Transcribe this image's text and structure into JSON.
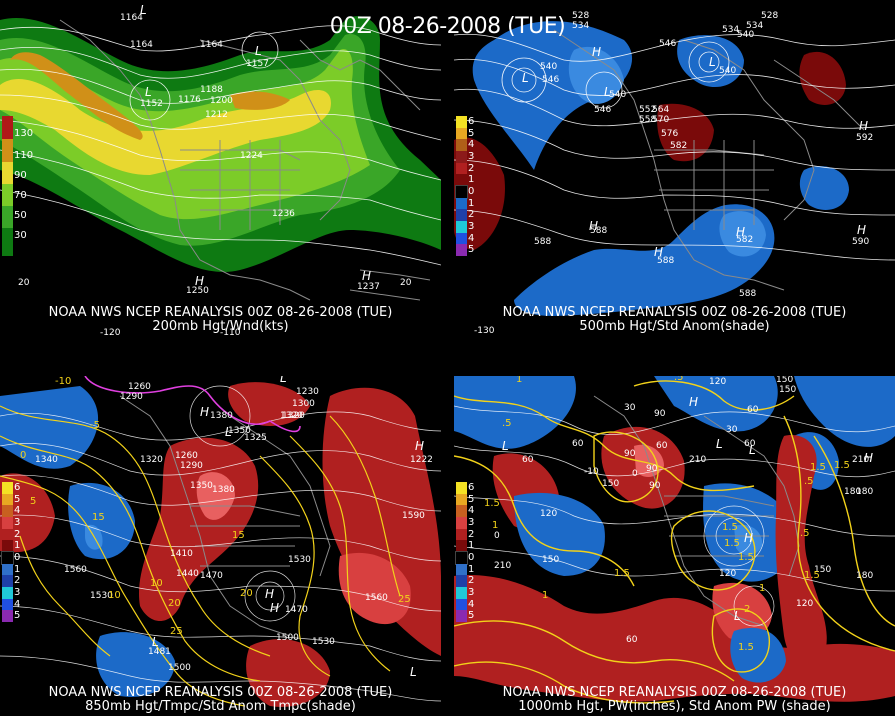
{
  "title": "00Z 08-26-2008 (TUE)",
  "panels": [
    {
      "caption1": "NOAA NWS NCEP REANALYSIS 00Z 08-26-2008 (TUE)",
      "caption2": "200mb Hgt/Wnd(kts)",
      "colorbar": [
        "130",
        "110",
        "90",
        "70",
        "50",
        "30"
      ],
      "colors": [
        "#b01818",
        "#d09018",
        "#e8d830",
        "#7ccc28",
        "#3aa628",
        "#0e7a12"
      ],
      "labels": [
        "1164",
        "1164",
        "1164",
        "1188",
        "1176",
        "1200",
        "1212",
        "1224",
        "1236",
        "1250",
        "1237",
        "1157",
        "1152"
      ],
      "ticks": [
        "20",
        "20",
        "-120",
        "-110"
      ]
    },
    {
      "caption1": "NOAA NWS NCEP REANALYSIS 00Z 08-26-2008 (TUE)",
      "caption2": "500mb Hgt/Std Anom(shade)",
      "colorbar": [
        "6",
        "5",
        "4",
        "3",
        "2",
        "1",
        "0",
        "1",
        "2",
        "3",
        "4",
        "5"
      ],
      "colors": [
        "#f4e224",
        "#e8a822",
        "#b06018",
        "#8c1a1a",
        "#b02020",
        "#7a0a0a",
        "#000000",
        "#1c6ac8",
        "#1e40a8",
        "#20c8d8",
        "#2050e0",
        "#8a2ab0"
      ],
      "labels": [
        "528",
        "534",
        "540",
        "546",
        "540",
        "546",
        "552",
        "564",
        "558",
        "570",
        "576",
        "582",
        "588",
        "588",
        "588",
        "582",
        "590",
        "592",
        "534",
        "540",
        "528",
        "534",
        "540",
        "546",
        "588"
      ],
      "ticks": [
        "-130"
      ]
    },
    {
      "caption1": "NOAA NWS NCEP REANALYSIS 00Z 08-26-2008 (TUE)",
      "caption2": "850mb Hgt/Tmpc/Std Anom Tmpc(shade)",
      "colorbar": [
        "6",
        "5",
        "4",
        "3",
        "2",
        "1",
        "0",
        "1",
        "2",
        "3",
        "4",
        "5"
      ],
      "colors": [
        "#f4e224",
        "#e8a822",
        "#c86020",
        "#d84040",
        "#b02020",
        "#7a0a0a",
        "#000000",
        "#3070c8",
        "#1e40a8",
        "#20c8d8",
        "#2050e0",
        "#8a2ab0"
      ],
      "labels": [
        "1260",
        "1290",
        "1380",
        "1350",
        "1325",
        "1320",
        "1290",
        "1260",
        "1320",
        "1350",
        "1380",
        "1410",
        "1440",
        "1470",
        "1530",
        "1560",
        "1530",
        "1470",
        "1500",
        "1530",
        "1560",
        "1590",
        "1500",
        "1481",
        "1270",
        "1230",
        "1222",
        "1300",
        "1320",
        "1340"
      ],
      "tempLabels": [
        "-10",
        "-5",
        "0",
        "5",
        "10",
        "15",
        "20",
        "25",
        "15",
        "20",
        "25",
        "10"
      ]
    },
    {
      "caption1": "NOAA NWS NCEP REANALYSIS 00Z 08-26-2008 (TUE)",
      "caption2": "1000mb Hgt, PW(inches), Std Anom PW (shade)",
      "colorbar": [
        "6",
        "5",
        "4",
        "3",
        "2",
        "1",
        "0",
        "1",
        "2",
        "3",
        "4",
        "5"
      ],
      "colors": [
        "#f4e224",
        "#e8a822",
        "#c86020",
        "#d84040",
        "#b02020",
        "#7a0a0a",
        "#000000",
        "#3070c8",
        "#1e40a8",
        "#20c8d8",
        "#2050e0",
        "#8a2ab0"
      ],
      "labels": [
        "60",
        "90",
        "120",
        "150",
        "210",
        "150",
        "120",
        "90",
        "60",
        "30",
        "60",
        "30",
        "120",
        "150",
        "180",
        "180",
        "210",
        "-10",
        "60",
        "150",
        "0",
        "210",
        "90",
        "120",
        "60",
        "90",
        "0",
        "60",
        "150",
        "180"
      ],
      "pwLabels": [
        "1",
        ".5",
        "1",
        "1.5",
        ".5",
        "1.5",
        "1.5",
        "1",
        "1.5",
        ".5",
        "1.5",
        "2",
        "1.5",
        "1.5",
        "1.5",
        ".5",
        "1",
        "1.5"
      ]
    }
  ]
}
